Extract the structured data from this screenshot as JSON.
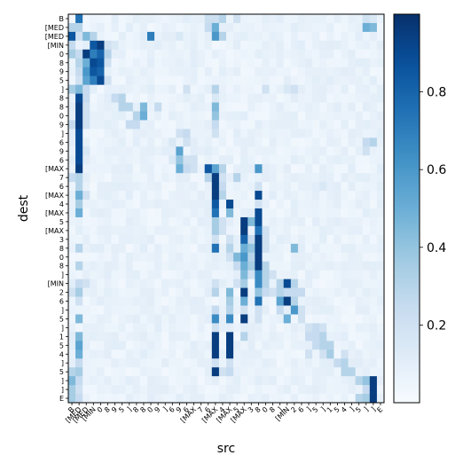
{
  "chart_data": {
    "type": "heatmap",
    "xlabel": "src",
    "ylabel": "dest",
    "colormap": "Blues",
    "x_tick_labels": [
      "B",
      "[MED",
      "[MED",
      "[MIN",
      "0",
      "8",
      "9",
      "5",
      "]",
      "8",
      "8",
      "0",
      "9",
      "]",
      "6",
      "9",
      "6",
      "[MAX",
      "7",
      "6",
      "[MAX",
      "4",
      "[MAX",
      "5",
      "[MAX",
      "3",
      "8",
      "0",
      "8",
      "]",
      "[MIN",
      "2",
      "6",
      "]",
      "5",
      "]",
      "1",
      "5",
      "4",
      "]",
      "5",
      "]",
      "]",
      "E"
    ],
    "y_tick_labels": [
      "B",
      "[MED",
      "[MED",
      "[MIN",
      "0",
      "8",
      "9",
      "5",
      "]",
      "8",
      "8",
      "0",
      "9",
      "]",
      "6",
      "9",
      "6",
      "[MAX",
      "7",
      "6",
      "[MAX",
      "4",
      "[MAX",
      "5",
      "[MAX",
      "3",
      "8",
      "0",
      "8",
      "]",
      "[MIN",
      "2",
      "6",
      "]",
      "5",
      "]",
      "1",
      "5",
      "4",
      "]",
      "5",
      "]",
      "]",
      "E"
    ],
    "colorbar": {
      "ticks": [
        0.2,
        0.4,
        0.6,
        0.8
      ],
      "tick_labels": [
        "0.2",
        "0.4",
        "0.6",
        "0.8"
      ],
      "range": [
        0.0,
        1.0
      ]
    },
    "background_value": 0.03,
    "cells": [
      [
        0,
        1,
        0.75
      ],
      [
        0,
        19,
        0.22
      ],
      [
        0,
        20,
        0.22
      ],
      [
        0,
        21,
        0.3
      ],
      [
        0,
        23,
        0.2
      ],
      [
        0,
        41,
        0.2
      ],
      [
        0,
        42,
        0.15
      ],
      [
        1,
        0,
        0.3
      ],
      [
        1,
        1,
        0.3
      ],
      [
        1,
        19,
        0.25
      ],
      [
        1,
        20,
        0.5
      ],
      [
        1,
        41,
        0.5
      ],
      [
        1,
        42,
        0.45
      ],
      [
        2,
        0,
        0.85
      ],
      [
        2,
        1,
        0.2
      ],
      [
        2,
        2,
        0.45
      ],
      [
        2,
        3,
        0.3
      ],
      [
        2,
        11,
        0.7
      ],
      [
        2,
        15,
        0.15
      ],
      [
        2,
        20,
        0.6
      ],
      [
        2,
        21,
        0.3
      ],
      [
        3,
        0,
        0.25
      ],
      [
        3,
        2,
        0.1
      ],
      [
        3,
        3,
        0.85
      ],
      [
        3,
        4,
        0.95
      ],
      [
        3,
        5,
        0.2
      ],
      [
        3,
        6,
        0.15
      ],
      [
        4,
        0,
        0.35
      ],
      [
        4,
        1,
        0.25
      ],
      [
        4,
        2,
        0.95
      ],
      [
        4,
        3,
        0.7
      ],
      [
        4,
        4,
        0.8
      ],
      [
        4,
        5,
        0.3
      ],
      [
        5,
        1,
        0.3
      ],
      [
        5,
        2,
        0.5
      ],
      [
        5,
        3,
        0.9
      ],
      [
        5,
        4,
        0.85
      ],
      [
        5,
        5,
        0.2
      ],
      [
        6,
        1,
        0.25
      ],
      [
        6,
        2,
        0.6
      ],
      [
        6,
        3,
        0.85
      ],
      [
        6,
        4,
        0.8
      ],
      [
        7,
        1,
        0.2
      ],
      [
        7,
        2,
        0.55
      ],
      [
        7,
        3,
        0.7
      ],
      [
        7,
        4,
        0.9
      ],
      [
        7,
        5,
        0.2
      ],
      [
        8,
        0,
        0.35
      ],
      [
        8,
        1,
        0.45
      ],
      [
        8,
        2,
        0.25
      ],
      [
        8,
        14,
        0.1
      ],
      [
        8,
        16,
        0.2
      ],
      [
        8,
        20,
        0.3
      ],
      [
        8,
        27,
        0.2
      ],
      [
        8,
        30,
        0.15
      ],
      [
        8,
        31,
        0.2
      ],
      [
        9,
        1,
        0.9
      ],
      [
        9,
        2,
        0.25
      ],
      [
        9,
        6,
        0.25
      ],
      [
        9,
        7,
        0.3
      ],
      [
        9,
        20,
        0.15
      ],
      [
        10,
        1,
        0.95
      ],
      [
        10,
        2,
        0.2
      ],
      [
        10,
        7,
        0.3
      ],
      [
        10,
        8,
        0.3
      ],
      [
        10,
        10,
        0.45
      ],
      [
        10,
        12,
        0.25
      ],
      [
        10,
        20,
        0.45
      ],
      [
        11,
        1,
        0.95
      ],
      [
        11,
        2,
        0.2
      ],
      [
        11,
        9,
        0.3
      ],
      [
        11,
        10,
        0.5
      ],
      [
        11,
        20,
        0.4
      ],
      [
        12,
        0,
        0.25
      ],
      [
        12,
        1,
        0.95
      ],
      [
        12,
        2,
        0.2
      ],
      [
        12,
        8,
        0.25
      ],
      [
        12,
        9,
        0.25
      ],
      [
        12,
        20,
        0.25
      ],
      [
        13,
        1,
        0.9
      ],
      [
        13,
        15,
        0.2
      ],
      [
        13,
        16,
        0.25
      ],
      [
        13,
        20,
        0.2
      ],
      [
        14,
        1,
        0.9
      ],
      [
        14,
        14,
        0.15
      ],
      [
        14,
        16,
        0.2
      ],
      [
        14,
        41,
        0.25
      ],
      [
        14,
        42,
        0.3
      ],
      [
        15,
        1,
        0.9
      ],
      [
        15,
        2,
        0.15
      ],
      [
        15,
        14,
        0.1
      ],
      [
        15,
        15,
        0.55
      ],
      [
        15,
        41,
        0.2
      ],
      [
        16,
        1,
        0.9
      ],
      [
        16,
        14,
        0.15
      ],
      [
        16,
        15,
        0.4
      ],
      [
        16,
        16,
        0.2
      ],
      [
        16,
        17,
        0.2
      ],
      [
        17,
        1,
        0.95
      ],
      [
        17,
        15,
        0.5
      ],
      [
        17,
        16,
        0.25
      ],
      [
        17,
        17,
        0.2
      ],
      [
        17,
        19,
        0.85
      ],
      [
        17,
        20,
        0.55
      ],
      [
        17,
        21,
        0.3
      ],
      [
        17,
        26,
        0.6
      ],
      [
        18,
        0,
        0.25
      ],
      [
        18,
        1,
        0.3
      ],
      [
        18,
        19,
        0.3
      ],
      [
        18,
        20,
        0.95
      ],
      [
        18,
        21,
        0.2
      ],
      [
        18,
        23,
        0.3
      ],
      [
        19,
        1,
        0.3
      ],
      [
        19,
        20,
        0.95
      ],
      [
        19,
        21,
        0.25
      ],
      [
        19,
        26,
        0.2
      ],
      [
        19,
        35,
        0.15
      ],
      [
        20,
        1,
        0.5
      ],
      [
        20,
        2,
        0.2
      ],
      [
        20,
        20,
        0.95
      ],
      [
        20,
        21,
        0.3
      ],
      [
        20,
        26,
        0.9
      ],
      [
        21,
        1,
        0.35
      ],
      [
        21,
        20,
        0.85
      ],
      [
        21,
        22,
        0.9
      ],
      [
        21,
        26,
        0.2
      ],
      [
        22,
        1,
        0.5
      ],
      [
        22,
        20,
        0.75
      ],
      [
        22,
        22,
        0.45
      ],
      [
        22,
        26,
        0.9
      ],
      [
        23,
        20,
        0.35
      ],
      [
        23,
        21,
        0.2
      ],
      [
        23,
        24,
        0.95
      ],
      [
        23,
        25,
        0.45
      ],
      [
        23,
        26,
        0.9
      ],
      [
        24,
        20,
        0.35
      ],
      [
        24,
        21,
        0.2
      ],
      [
        24,
        24,
        0.95
      ],
      [
        24,
        26,
        0.75
      ],
      [
        24,
        27,
        0.2
      ],
      [
        25,
        20,
        0.2
      ],
      [
        25,
        22,
        0.2
      ],
      [
        25,
        24,
        0.8
      ],
      [
        25,
        25,
        0.25
      ],
      [
        25,
        26,
        0.95
      ],
      [
        25,
        27,
        0.2
      ],
      [
        26,
        1,
        0.3
      ],
      [
        26,
        20,
        0.75
      ],
      [
        26,
        22,
        0.3
      ],
      [
        26,
        24,
        0.5
      ],
      [
        26,
        25,
        0.4
      ],
      [
        26,
        26,
        0.95
      ],
      [
        26,
        27,
        0.2
      ],
      [
        26,
        31,
        0.45
      ],
      [
        27,
        22,
        0.2
      ],
      [
        27,
        23,
        0.45
      ],
      [
        27,
        24,
        0.6
      ],
      [
        27,
        25,
        0.3
      ],
      [
        27,
        26,
        0.95
      ],
      [
        28,
        1,
        0.3
      ],
      [
        28,
        23,
        0.25
      ],
      [
        28,
        24,
        0.5
      ],
      [
        28,
        25,
        0.35
      ],
      [
        28,
        26,
        0.95
      ],
      [
        28,
        27,
        0.3
      ],
      [
        29,
        24,
        0.45
      ],
      [
        29,
        25,
        0.2
      ],
      [
        29,
        26,
        0.65
      ],
      [
        29,
        27,
        0.3
      ],
      [
        29,
        28,
        0.2
      ],
      [
        30,
        1,
        0.25
      ],
      [
        30,
        2,
        0.2
      ],
      [
        30,
        20,
        0.2
      ],
      [
        30,
        23,
        0.2
      ],
      [
        30,
        24,
        0.35
      ],
      [
        30,
        26,
        0.65
      ],
      [
        30,
        27,
        0.3
      ],
      [
        30,
        29,
        0.3
      ],
      [
        30,
        30,
        0.9
      ],
      [
        30,
        31,
        0.3
      ],
      [
        31,
        0,
        0.2
      ],
      [
        31,
        1,
        0.35
      ],
      [
        31,
        20,
        0.3
      ],
      [
        31,
        22,
        0.45
      ],
      [
        31,
        24,
        0.95
      ],
      [
        31,
        26,
        0.4
      ],
      [
        31,
        27,
        0.25
      ],
      [
        31,
        28,
        0.2
      ],
      [
        31,
        29,
        0.3
      ],
      [
        31,
        30,
        0.25
      ],
      [
        31,
        31,
        0.25
      ],
      [
        31,
        32,
        0.25
      ],
      [
        32,
        1,
        0.2
      ],
      [
        32,
        22,
        0.35
      ],
      [
        32,
        24,
        0.5
      ],
      [
        32,
        26,
        0.75
      ],
      [
        32,
        29,
        0.55
      ],
      [
        32,
        30,
        0.95
      ],
      [
        32,
        31,
        0.3
      ],
      [
        33,
        20,
        0.25
      ],
      [
        33,
        22,
        0.3
      ],
      [
        33,
        24,
        0.2
      ],
      [
        33,
        26,
        0.2
      ],
      [
        33,
        29,
        0.25
      ],
      [
        33,
        31,
        0.6
      ],
      [
        33,
        32,
        0.2
      ],
      [
        34,
        1,
        0.45
      ],
      [
        34,
        20,
        0.65
      ],
      [
        34,
        22,
        0.65
      ],
      [
        34,
        24,
        0.95
      ],
      [
        34,
        26,
        0.2
      ],
      [
        34,
        30,
        0.5
      ],
      [
        34,
        32,
        0.2
      ],
      [
        35,
        20,
        0.2
      ],
      [
        35,
        33,
        0.2
      ],
      [
        35,
        34,
        0.25
      ],
      [
        35,
        35,
        0.2
      ],
      [
        36,
        1,
        0.45
      ],
      [
        36,
        20,
        0.95
      ],
      [
        36,
        22,
        0.95
      ],
      [
        36,
        24,
        0.3
      ],
      [
        36,
        33,
        0.25
      ],
      [
        36,
        34,
        0.25
      ],
      [
        36,
        35,
        0.3
      ],
      [
        37,
        1,
        0.55
      ],
      [
        37,
        20,
        0.95
      ],
      [
        37,
        22,
        0.95
      ],
      [
        37,
        34,
        0.25
      ],
      [
        37,
        35,
        0.3
      ],
      [
        37,
        36,
        0.3
      ],
      [
        38,
        1,
        0.5
      ],
      [
        38,
        20,
        0.95
      ],
      [
        38,
        22,
        0.95
      ],
      [
        38,
        33,
        0.2
      ],
      [
        38,
        35,
        0.2
      ],
      [
        38,
        36,
        0.35
      ],
      [
        38,
        38,
        0.2
      ],
      [
        39,
        1,
        0.25
      ],
      [
        39,
        20,
        0.2
      ],
      [
        39,
        22,
        0.2
      ],
      [
        39,
        37,
        0.25
      ],
      [
        39,
        38,
        0.3
      ],
      [
        40,
        0,
        0.3
      ],
      [
        40,
        1,
        0.35
      ],
      [
        40,
        20,
        0.95
      ],
      [
        40,
        21,
        0.2
      ],
      [
        40,
        22,
        0.25
      ],
      [
        40,
        38,
        0.3
      ],
      [
        40,
        39,
        0.3
      ],
      [
        41,
        0,
        0.45
      ],
      [
        41,
        1,
        0.25
      ],
      [
        41,
        40,
        0.3
      ],
      [
        41,
        41,
        0.4
      ],
      [
        41,
        42,
        0.95
      ],
      [
        42,
        0,
        0.35
      ],
      [
        42,
        1,
        0.2
      ],
      [
        42,
        41,
        0.25
      ],
      [
        42,
        42,
        0.95
      ],
      [
        43,
        0,
        0.35
      ],
      [
        43,
        1,
        0.25
      ],
      [
        43,
        40,
        0.3
      ],
      [
        43,
        41,
        0.35
      ],
      [
        43,
        42,
        0.95
      ]
    ]
  }
}
